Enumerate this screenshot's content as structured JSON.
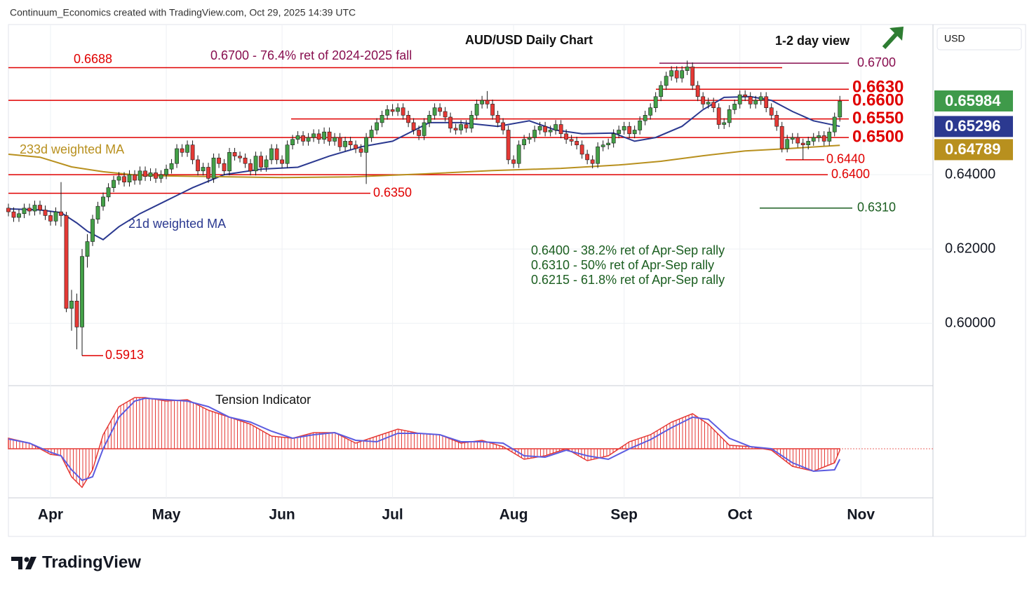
{
  "chart_data": {
    "type": "candlestick",
    "header": "Continuum_Economics created with TradingView.com, Oct 29, 2025 14:39 UTC",
    "title": "AUD/USD Daily Chart",
    "subtitle": "1-2 day view",
    "annotation": "0.6700 - 76.4% ret of 2024-2025 fall",
    "notes": [
      "0.6400 - 38.2% ret of Apr-Sep rally",
      "0.6310 - 50% ret of Apr-Sep rally",
      "0.6215 - 61.8% ret of Apr-Sep rally"
    ],
    "currency": "USD",
    "brand": "TradingView",
    "xlim": [
      -8,
      167.7
    ],
    "ylim": [
      0.5836,
      0.6804
    ],
    "xticks": [
      {
        "value": 0,
        "label": "Apr"
      },
      {
        "value": 22,
        "label": "May"
      },
      {
        "value": 44,
        "label": "Jun"
      },
      {
        "value": 65,
        "label": "Jul"
      },
      {
        "value": 88,
        "label": "Aug"
      },
      {
        "value": 109,
        "label": "Sep"
      },
      {
        "value": 131,
        "label": "Oct"
      },
      {
        "value": 154,
        "label": "Nov"
      }
    ],
    "yticks": [
      {
        "value": 0.6,
        "label": "0.60000"
      },
      {
        "value": 0.62,
        "label": "0.62000"
      },
      {
        "value": 0.64,
        "label": "0.64000"
      }
    ],
    "grid": true,
    "up_color": "#43a047",
    "down_color": "#e53935",
    "candles": {
      "x": [
        -8,
        -7,
        -6,
        -5,
        -4,
        -3,
        -2,
        -1,
        0,
        1,
        2,
        3,
        4,
        5,
        6,
        7,
        8,
        9,
        10,
        11,
        12,
        13,
        14,
        15,
        16,
        17,
        18,
        19,
        20,
        21,
        22,
        23,
        24,
        25,
        26,
        27,
        28,
        29,
        30,
        31,
        32,
        33,
        34,
        35,
        36,
        37,
        38,
        39,
        40,
        41,
        42,
        43,
        44,
        45,
        46,
        47,
        48,
        49,
        50,
        51,
        52,
        53,
        54,
        55,
        56,
        57,
        58,
        59,
        60,
        61,
        62,
        63,
        64,
        65,
        66,
        67,
        68,
        69,
        70,
        71,
        72,
        73,
        74,
        75,
        76,
        77,
        78,
        79,
        80,
        81,
        82,
        83,
        84,
        85,
        86,
        87,
        88,
        89,
        90,
        91,
        92,
        93,
        94,
        95,
        96,
        97,
        98,
        99,
        100,
        101,
        102,
        103,
        104,
        105,
        106,
        107,
        108,
        109,
        110,
        111,
        112,
        113,
        114,
        115,
        116,
        117,
        118,
        119,
        120,
        121,
        122,
        123,
        124,
        125,
        126,
        127,
        128,
        129,
        130,
        131,
        132,
        133,
        134,
        135,
        136,
        137,
        138,
        139,
        140,
        141,
        142,
        143,
        144,
        145,
        146,
        147,
        148,
        149,
        150
      ],
      "open": [
        0.631,
        0.63,
        0.6285,
        0.6295,
        0.631,
        0.6302,
        0.6318,
        0.6305,
        0.629,
        0.6275,
        0.63,
        0.629,
        0.604,
        0.606,
        0.599,
        0.618,
        0.622,
        0.628,
        0.6315,
        0.634,
        0.6365,
        0.6385,
        0.6395,
        0.638,
        0.64,
        0.6385,
        0.641,
        0.6395,
        0.6405,
        0.639,
        0.64,
        0.6415,
        0.643,
        0.647,
        0.646,
        0.648,
        0.644,
        0.641,
        0.642,
        0.639,
        0.6445,
        0.643,
        0.641,
        0.646,
        0.645,
        0.6445,
        0.643,
        0.641,
        0.645,
        0.642,
        0.644,
        0.647,
        0.644,
        0.643,
        0.648,
        0.6495,
        0.6505,
        0.649,
        0.65,
        0.651,
        0.6495,
        0.6515,
        0.649,
        0.65,
        0.6475,
        0.649,
        0.648,
        0.647,
        0.646,
        0.65,
        0.652,
        0.654,
        0.656,
        0.6575,
        0.657,
        0.658,
        0.656,
        0.654,
        0.652,
        0.6505,
        0.654,
        0.656,
        0.658,
        0.657,
        0.6555,
        0.6525,
        0.652,
        0.6535,
        0.6525,
        0.656,
        0.659,
        0.66,
        0.659,
        0.656,
        0.654,
        0.652,
        0.644,
        0.643,
        0.648,
        0.6495,
        0.65,
        0.652,
        0.653,
        0.6515,
        0.652,
        0.6535,
        0.651,
        0.6495,
        0.649,
        0.648,
        0.6455,
        0.644,
        0.643,
        0.6475,
        0.648,
        0.6485,
        0.651,
        0.652,
        0.653,
        0.651,
        0.652,
        0.6545,
        0.656,
        0.658,
        0.661,
        0.664,
        0.6665,
        0.668,
        0.666,
        0.668,
        0.669,
        0.664,
        0.661,
        0.659,
        0.6595,
        0.658,
        0.6535,
        0.654,
        0.6575,
        0.659,
        0.6615,
        0.661,
        0.659,
        0.66,
        0.661,
        0.658,
        0.656,
        0.653,
        0.647,
        0.6495,
        0.65,
        0.6485,
        0.648,
        0.649,
        0.65,
        0.6505,
        0.649,
        0.6515,
        0.6555
      ],
      "high": [
        0.6322,
        0.6312,
        0.6307,
        0.6322,
        0.6322,
        0.633,
        0.633,
        0.6317,
        0.6302,
        0.6312,
        0.638,
        0.63,
        0.609,
        0.608,
        0.62,
        0.624,
        0.6292,
        0.6327,
        0.6352,
        0.6377,
        0.6397,
        0.6407,
        0.6407,
        0.6412,
        0.6412,
        0.6422,
        0.6422,
        0.6417,
        0.6417,
        0.6412,
        0.6427,
        0.6442,
        0.6482,
        0.6482,
        0.6492,
        0.6492,
        0.6452,
        0.6432,
        0.6432,
        0.6457,
        0.6457,
        0.6442,
        0.6472,
        0.6472,
        0.6462,
        0.6457,
        0.6442,
        0.6462,
        0.6462,
        0.6452,
        0.6482,
        0.6482,
        0.6452,
        0.6492,
        0.6507,
        0.6517,
        0.6517,
        0.6512,
        0.6522,
        0.6522,
        0.6527,
        0.6527,
        0.6512,
        0.6512,
        0.6502,
        0.6502,
        0.6492,
        0.6482,
        0.6512,
        0.6532,
        0.6552,
        0.6572,
        0.6587,
        0.659,
        0.6592,
        0.6592,
        0.6572,
        0.6552,
        0.6532,
        0.6552,
        0.6572,
        0.6592,
        0.6592,
        0.6582,
        0.6567,
        0.6537,
        0.6547,
        0.6547,
        0.6572,
        0.6602,
        0.6612,
        0.6625,
        0.6602,
        0.6572,
        0.6552,
        0.6532,
        0.6452,
        0.6492,
        0.6507,
        0.6512,
        0.6532,
        0.6542,
        0.6542,
        0.6532,
        0.6547,
        0.6547,
        0.6522,
        0.6507,
        0.6502,
        0.6492,
        0.6467,
        0.6452,
        0.6487,
        0.6492,
        0.6497,
        0.6522,
        0.6532,
        0.6542,
        0.6542,
        0.6532,
        0.6557,
        0.6572,
        0.6592,
        0.6622,
        0.6652,
        0.6677,
        0.6692,
        0.6692,
        0.6692,
        0.6707,
        0.6702,
        0.6652,
        0.6622,
        0.6607,
        0.6607,
        0.6592,
        0.6552,
        0.6587,
        0.6602,
        0.6627,
        0.6627,
        0.6622,
        0.6612,
        0.6622,
        0.6622,
        0.6592,
        0.6572,
        0.6542,
        0.6507,
        0.6512,
        0.6512,
        0.6497,
        0.6502,
        0.6512,
        0.6517,
        0.6517,
        0.6527,
        0.6567,
        0.6612
      ],
      "low": [
        0.6288,
        0.6273,
        0.6273,
        0.6283,
        0.629,
        0.629,
        0.6293,
        0.6278,
        0.6263,
        0.6263,
        0.626,
        0.603,
        0.598,
        0.593,
        0.5913,
        0.615,
        0.6208,
        0.6268,
        0.6303,
        0.6328,
        0.6353,
        0.6373,
        0.6368,
        0.6368,
        0.6373,
        0.6373,
        0.6383,
        0.6383,
        0.6378,
        0.6378,
        0.6388,
        0.6403,
        0.6418,
        0.6448,
        0.6448,
        0.6428,
        0.6398,
        0.6398,
        0.6378,
        0.6378,
        0.6418,
        0.6398,
        0.6398,
        0.6438,
        0.6433,
        0.6418,
        0.6398,
        0.6398,
        0.6408,
        0.6408,
        0.6428,
        0.6428,
        0.6418,
        0.6418,
        0.6468,
        0.6483,
        0.6478,
        0.6478,
        0.6488,
        0.6483,
        0.6483,
        0.6478,
        0.6478,
        0.6463,
        0.6463,
        0.6468,
        0.6458,
        0.6448,
        0.6375,
        0.6488,
        0.6508,
        0.6528,
        0.6548,
        0.6558,
        0.6558,
        0.6548,
        0.6528,
        0.6508,
        0.6493,
        0.6493,
        0.6528,
        0.6548,
        0.6558,
        0.6543,
        0.6513,
        0.6508,
        0.6508,
        0.6513,
        0.6513,
        0.6548,
        0.6578,
        0.6578,
        0.6548,
        0.6528,
        0.6508,
        0.6428,
        0.6418,
        0.6418,
        0.6468,
        0.6483,
        0.6488,
        0.6508,
        0.6503,
        0.6503,
        0.6508,
        0.6498,
        0.6483,
        0.6478,
        0.6468,
        0.6443,
        0.6428,
        0.6417,
        0.6418,
        0.6463,
        0.6468,
        0.6473,
        0.6498,
        0.6508,
        0.6498,
        0.6498,
        0.6508,
        0.6533,
        0.6548,
        0.6568,
        0.6598,
        0.6628,
        0.6653,
        0.6648,
        0.6648,
        0.6668,
        0.6628,
        0.6598,
        0.6578,
        0.6578,
        0.6568,
        0.6523,
        0.6523,
        0.6528,
        0.6563,
        0.6578,
        0.6598,
        0.6578,
        0.6578,
        0.6588,
        0.6568,
        0.6548,
        0.6518,
        0.646,
        0.646,
        0.6483,
        0.6473,
        0.644,
        0.6468,
        0.6478,
        0.6488,
        0.6478,
        0.6478,
        0.6503,
        0.6543
      ],
      "close": [
        0.63,
        0.6285,
        0.6295,
        0.631,
        0.6302,
        0.6318,
        0.6305,
        0.629,
        0.6275,
        0.63,
        0.629,
        0.604,
        0.606,
        0.599,
        0.618,
        0.622,
        0.628,
        0.6315,
        0.634,
        0.6365,
        0.6385,
        0.6395,
        0.638,
        0.64,
        0.6385,
        0.641,
        0.6395,
        0.6405,
        0.639,
        0.64,
        0.6415,
        0.643,
        0.647,
        0.646,
        0.648,
        0.644,
        0.641,
        0.642,
        0.639,
        0.6445,
        0.643,
        0.641,
        0.646,
        0.645,
        0.6445,
        0.643,
        0.641,
        0.645,
        0.642,
        0.644,
        0.647,
        0.644,
        0.643,
        0.648,
        0.6495,
        0.6505,
        0.649,
        0.65,
        0.651,
        0.6495,
        0.6515,
        0.649,
        0.65,
        0.6475,
        0.649,
        0.648,
        0.647,
        0.646,
        0.65,
        0.652,
        0.654,
        0.656,
        0.6575,
        0.657,
        0.658,
        0.656,
        0.654,
        0.652,
        0.6505,
        0.654,
        0.656,
        0.658,
        0.657,
        0.6555,
        0.6525,
        0.652,
        0.6535,
        0.6525,
        0.656,
        0.659,
        0.66,
        0.659,
        0.656,
        0.654,
        0.652,
        0.644,
        0.643,
        0.648,
        0.6495,
        0.65,
        0.652,
        0.653,
        0.6515,
        0.652,
        0.6535,
        0.651,
        0.6495,
        0.649,
        0.648,
        0.6455,
        0.644,
        0.643,
        0.6475,
        0.648,
        0.6485,
        0.651,
        0.652,
        0.653,
        0.651,
        0.652,
        0.6545,
        0.656,
        0.658,
        0.661,
        0.664,
        0.6665,
        0.668,
        0.666,
        0.668,
        0.669,
        0.664,
        0.661,
        0.659,
        0.6595,
        0.658,
        0.6535,
        0.654,
        0.6575,
        0.659,
        0.6615,
        0.661,
        0.659,
        0.66,
        0.661,
        0.658,
        0.656,
        0.653,
        0.647,
        0.6495,
        0.65,
        0.6485,
        0.648,
        0.649,
        0.65,
        0.6505,
        0.649,
        0.6515,
        0.6555,
        0.6598
      ]
    },
    "series": [
      {
        "name": "21d weighted MA",
        "color": "#2b3990",
        "x": [
          -8,
          -2,
          2,
          5,
          7,
          10,
          13,
          17,
          22,
          27,
          33,
          40,
          47,
          53,
          59,
          65,
          72,
          78,
          85,
          91,
          96,
          101,
          107,
          111,
          115,
          120,
          124,
          128,
          133,
          137,
          141,
          145,
          150
        ],
        "values": [
          0.6308,
          0.6305,
          0.6298,
          0.627,
          0.6248,
          0.6225,
          0.626,
          0.6295,
          0.633,
          0.6365,
          0.64,
          0.6415,
          0.642,
          0.645,
          0.6475,
          0.649,
          0.654,
          0.654,
          0.653,
          0.6545,
          0.652,
          0.651,
          0.6512,
          0.649,
          0.65,
          0.653,
          0.6575,
          0.6608,
          0.661,
          0.66,
          0.657,
          0.6545,
          0.653
        ]
      },
      {
        "name": "233d weighted MA",
        "color": "#b8901e",
        "x": [
          -8,
          -2,
          4,
          10,
          17,
          30,
          44,
          57,
          71,
          84,
          97,
          108,
          116,
          124,
          132,
          140,
          150
        ],
        "values": [
          0.6455,
          0.6447,
          0.6421,
          0.6408,
          0.6398,
          0.6395,
          0.6392,
          0.6394,
          0.6402,
          0.6411,
          0.6417,
          0.6426,
          0.6436,
          0.6451,
          0.6464,
          0.647,
          0.6479
        ]
      }
    ],
    "levels": [
      {
        "value": 0.67,
        "label": "0.6700",
        "color": "#880e4f"
      },
      {
        "value": 0.6688,
        "label": "0.6688",
        "color": "#e00000"
      },
      {
        "value": 0.663,
        "label": "0.6630",
        "color": "#e00000"
      },
      {
        "value": 0.66,
        "label": "0.6600",
        "color": "#e00000"
      },
      {
        "value": 0.655,
        "label": "0.6550",
        "color": "#e00000"
      },
      {
        "value": 0.65,
        "label": "0.6500",
        "color": "#e00000"
      },
      {
        "value": 0.644,
        "label": "0.6440",
        "color": "#e00000"
      },
      {
        "value": 0.64,
        "label": "0.6400",
        "color": "#e00000"
      },
      {
        "value": 0.635,
        "label": "0.6350",
        "color": "#e00000"
      },
      {
        "value": 0.631,
        "label": "0.6310",
        "color": "#1b5e20"
      },
      {
        "value": 0.5913,
        "label": "0.5913",
        "color": "#e00000"
      }
    ],
    "price_badges": [
      {
        "value": 0.65984,
        "label": "0.65984",
        "color": "#3f9a4a"
      },
      {
        "value": 0.65296,
        "label": "0.65296",
        "color": "#2b3990"
      },
      {
        "value": 0.64789,
        "label": "0.64789",
        "color": "#b8901e"
      }
    ],
    "indicator": {
      "name": "Tension Indicator",
      "ylim": [
        -70,
        88
      ],
      "x": [
        -8,
        -4,
        0,
        2,
        4,
        6,
        8,
        10,
        13,
        16,
        18,
        22,
        26,
        30,
        34,
        38,
        42,
        46,
        50,
        54,
        58,
        62,
        66,
        70,
        74,
        78,
        82,
        86,
        90,
        94,
        98,
        102,
        106,
        110,
        114,
        118,
        122,
        125,
        129,
        133,
        137,
        141,
        145,
        149,
        150
      ],
      "series": [
        {
          "color": "#e53935",
          "values": [
            15,
            8,
            -8,
            -10,
            -40,
            -55,
            -30,
            20,
            60,
            73,
            73,
            68,
            70,
            55,
            45,
            35,
            18,
            15,
            23,
            23,
            8,
            18,
            28,
            22,
            20,
            8,
            12,
            3,
            -15,
            -10,
            0,
            -17,
            -10,
            10,
            20,
            38,
            50,
            35,
            5,
            3,
            -2,
            -25,
            -32,
            -20,
            -2
          ]
        },
        {
          "color": "#5c5ce0",
          "values": [
            14,
            8,
            -5,
            -10,
            -30,
            -45,
            -40,
            0,
            45,
            68,
            72,
            70,
            68,
            60,
            45,
            38,
            25,
            15,
            20,
            23,
            12,
            10,
            22,
            22,
            20,
            10,
            10,
            8,
            -10,
            -12,
            -2,
            -10,
            -15,
            0,
            13,
            30,
            45,
            42,
            15,
            3,
            0,
            -20,
            -32,
            -30,
            -15
          ]
        }
      ]
    }
  }
}
